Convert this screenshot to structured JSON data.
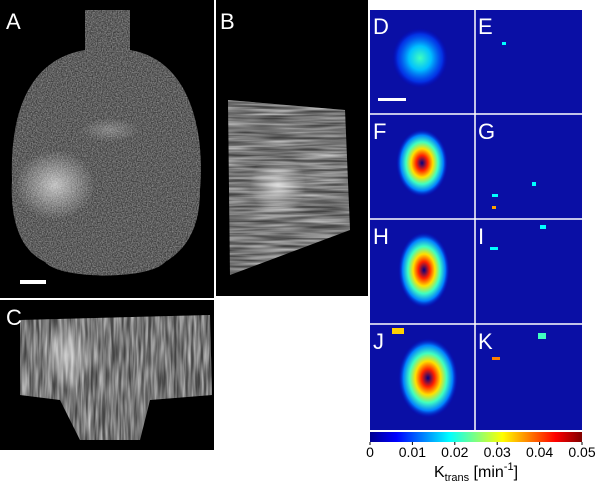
{
  "panels": [
    {
      "label": "A"
    },
    {
      "label": "B"
    },
    {
      "label": "C"
    },
    {
      "label": "D"
    },
    {
      "label": "E"
    },
    {
      "label": "F"
    },
    {
      "label": "G"
    },
    {
      "label": "H"
    },
    {
      "label": "I"
    },
    {
      "label": "J"
    },
    {
      "label": "K"
    }
  ],
  "colorbar": {
    "lim": [
      0,
      0.05
    ],
    "ticks": [
      0,
      0.01,
      0.02,
      0.03,
      0.04,
      0.05
    ],
    "label": {
      "main": "K",
      "sub": "trans",
      "unit": " [min",
      "sup": "-1",
      "end": "]"
    }
  }
}
